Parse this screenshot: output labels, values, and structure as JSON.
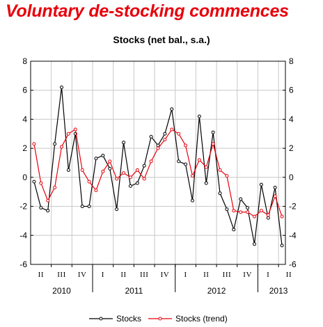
{
  "headline": "Voluntary de-stocking commences",
  "chart_data": {
    "type": "line",
    "title": "Stocks (net bal., s.a.)",
    "ylim": [
      -6,
      8
    ],
    "yticks": [
      -6,
      -4,
      -2,
      0,
      2,
      4,
      6,
      8
    ],
    "grid": true,
    "legend_position": "bottom-center",
    "quarter_labels": [
      "II",
      "III",
      "IV",
      "I",
      "II",
      "III",
      "IV",
      "I",
      "II",
      "III",
      "IV",
      "I",
      "II"
    ],
    "year_labels": [
      "2010",
      "2011",
      "2012",
      "2013"
    ],
    "series": [
      {
        "name": "Stocks",
        "color": "#000000",
        "values": [
          -0.3,
          -2.1,
          -2.3,
          2.3,
          6.2,
          0.5,
          3.0,
          -2.0,
          -2.0,
          1.3,
          1.5,
          0.6,
          -2.2,
          2.4,
          -0.6,
          -0.4,
          0.8,
          2.8,
          2.2,
          3.0,
          4.7,
          1.1,
          0.9,
          -1.6,
          4.2,
          -0.4,
          3.1,
          -1.1,
          -2.2,
          -3.6,
          -1.5,
          -2.1,
          -4.6,
          -0.5,
          -2.8,
          -0.7,
          -4.7
        ]
      },
      {
        "name": "Stocks (trend)",
        "color": "#e8000b",
        "values": [
          2.3,
          -0.4,
          -1.6,
          -0.7,
          2.1,
          3.0,
          3.3,
          0.5,
          -0.3,
          -0.9,
          0.4,
          1.1,
          -0.1,
          0.3,
          0.0,
          0.5,
          -0.1,
          1.1,
          2.0,
          2.6,
          3.3,
          3.0,
          2.2,
          0.1,
          1.2,
          0.7,
          2.3,
          0.5,
          0.1,
          -2.3,
          -2.4,
          -2.4,
          -2.7,
          -2.3,
          -2.6,
          -1.3,
          -2.7
        ]
      }
    ]
  }
}
